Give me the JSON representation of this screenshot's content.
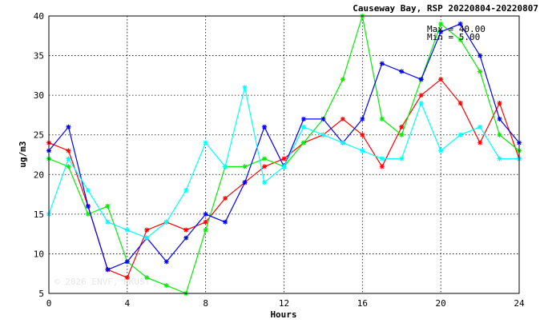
{
  "chart_data": {
    "type": "line",
    "title": "Causeway Bay, RSP 20220804-20220807",
    "xlabel": "Hours",
    "ylabel": "ug/m3",
    "xlim": [
      0,
      24
    ],
    "ylim": [
      5,
      40
    ],
    "xticks": [
      0,
      4,
      8,
      12,
      16,
      20,
      24
    ],
    "yticks": [
      5,
      10,
      15,
      20,
      25,
      30,
      35,
      40
    ],
    "grid": true,
    "stats": {
      "max_label": "Max = 40.00",
      "min_label": "Min =  5.00"
    },
    "watermark": "© 2026  ENVF, HKUST",
    "x": [
      0,
      1,
      2,
      3,
      4,
      5,
      6,
      7,
      8,
      9,
      10,
      11,
      12,
      13,
      14,
      15,
      16,
      17,
      18,
      19,
      20,
      21,
      22,
      23,
      24
    ],
    "series": [
      {
        "color": "#ff0000",
        "values": [
          24,
          23,
          16,
          8,
          7,
          13,
          14,
          13,
          14,
          17,
          19,
          21,
          22,
          24,
          25,
          27,
          25,
          21,
          26,
          30,
          32,
          29,
          24,
          29,
          22
        ]
      },
      {
        "color": "#00ee00",
        "values": [
          22,
          21,
          15,
          16,
          9,
          7,
          6,
          5,
          13,
          21,
          21,
          22,
          21,
          24,
          27,
          32,
          40,
          27,
          25,
          32,
          39,
          37,
          33,
          25,
          23
        ]
      },
      {
        "color": "#0000ff",
        "values": [
          23,
          26,
          16,
          8,
          9,
          12,
          9,
          12,
          15,
          14,
          19,
          26,
          21,
          27,
          27,
          24,
          27,
          34,
          33,
          32,
          38,
          39,
          35,
          27,
          24
        ]
      },
      {
        "color": "#00ffff",
        "values": [
          15,
          22,
          18,
          14,
          13,
          12,
          14,
          18,
          24,
          21,
          31,
          19,
          21,
          26,
          25,
          24,
          23,
          22,
          22,
          29,
          23,
          25,
          26,
          22,
          22
        ]
      }
    ]
  }
}
